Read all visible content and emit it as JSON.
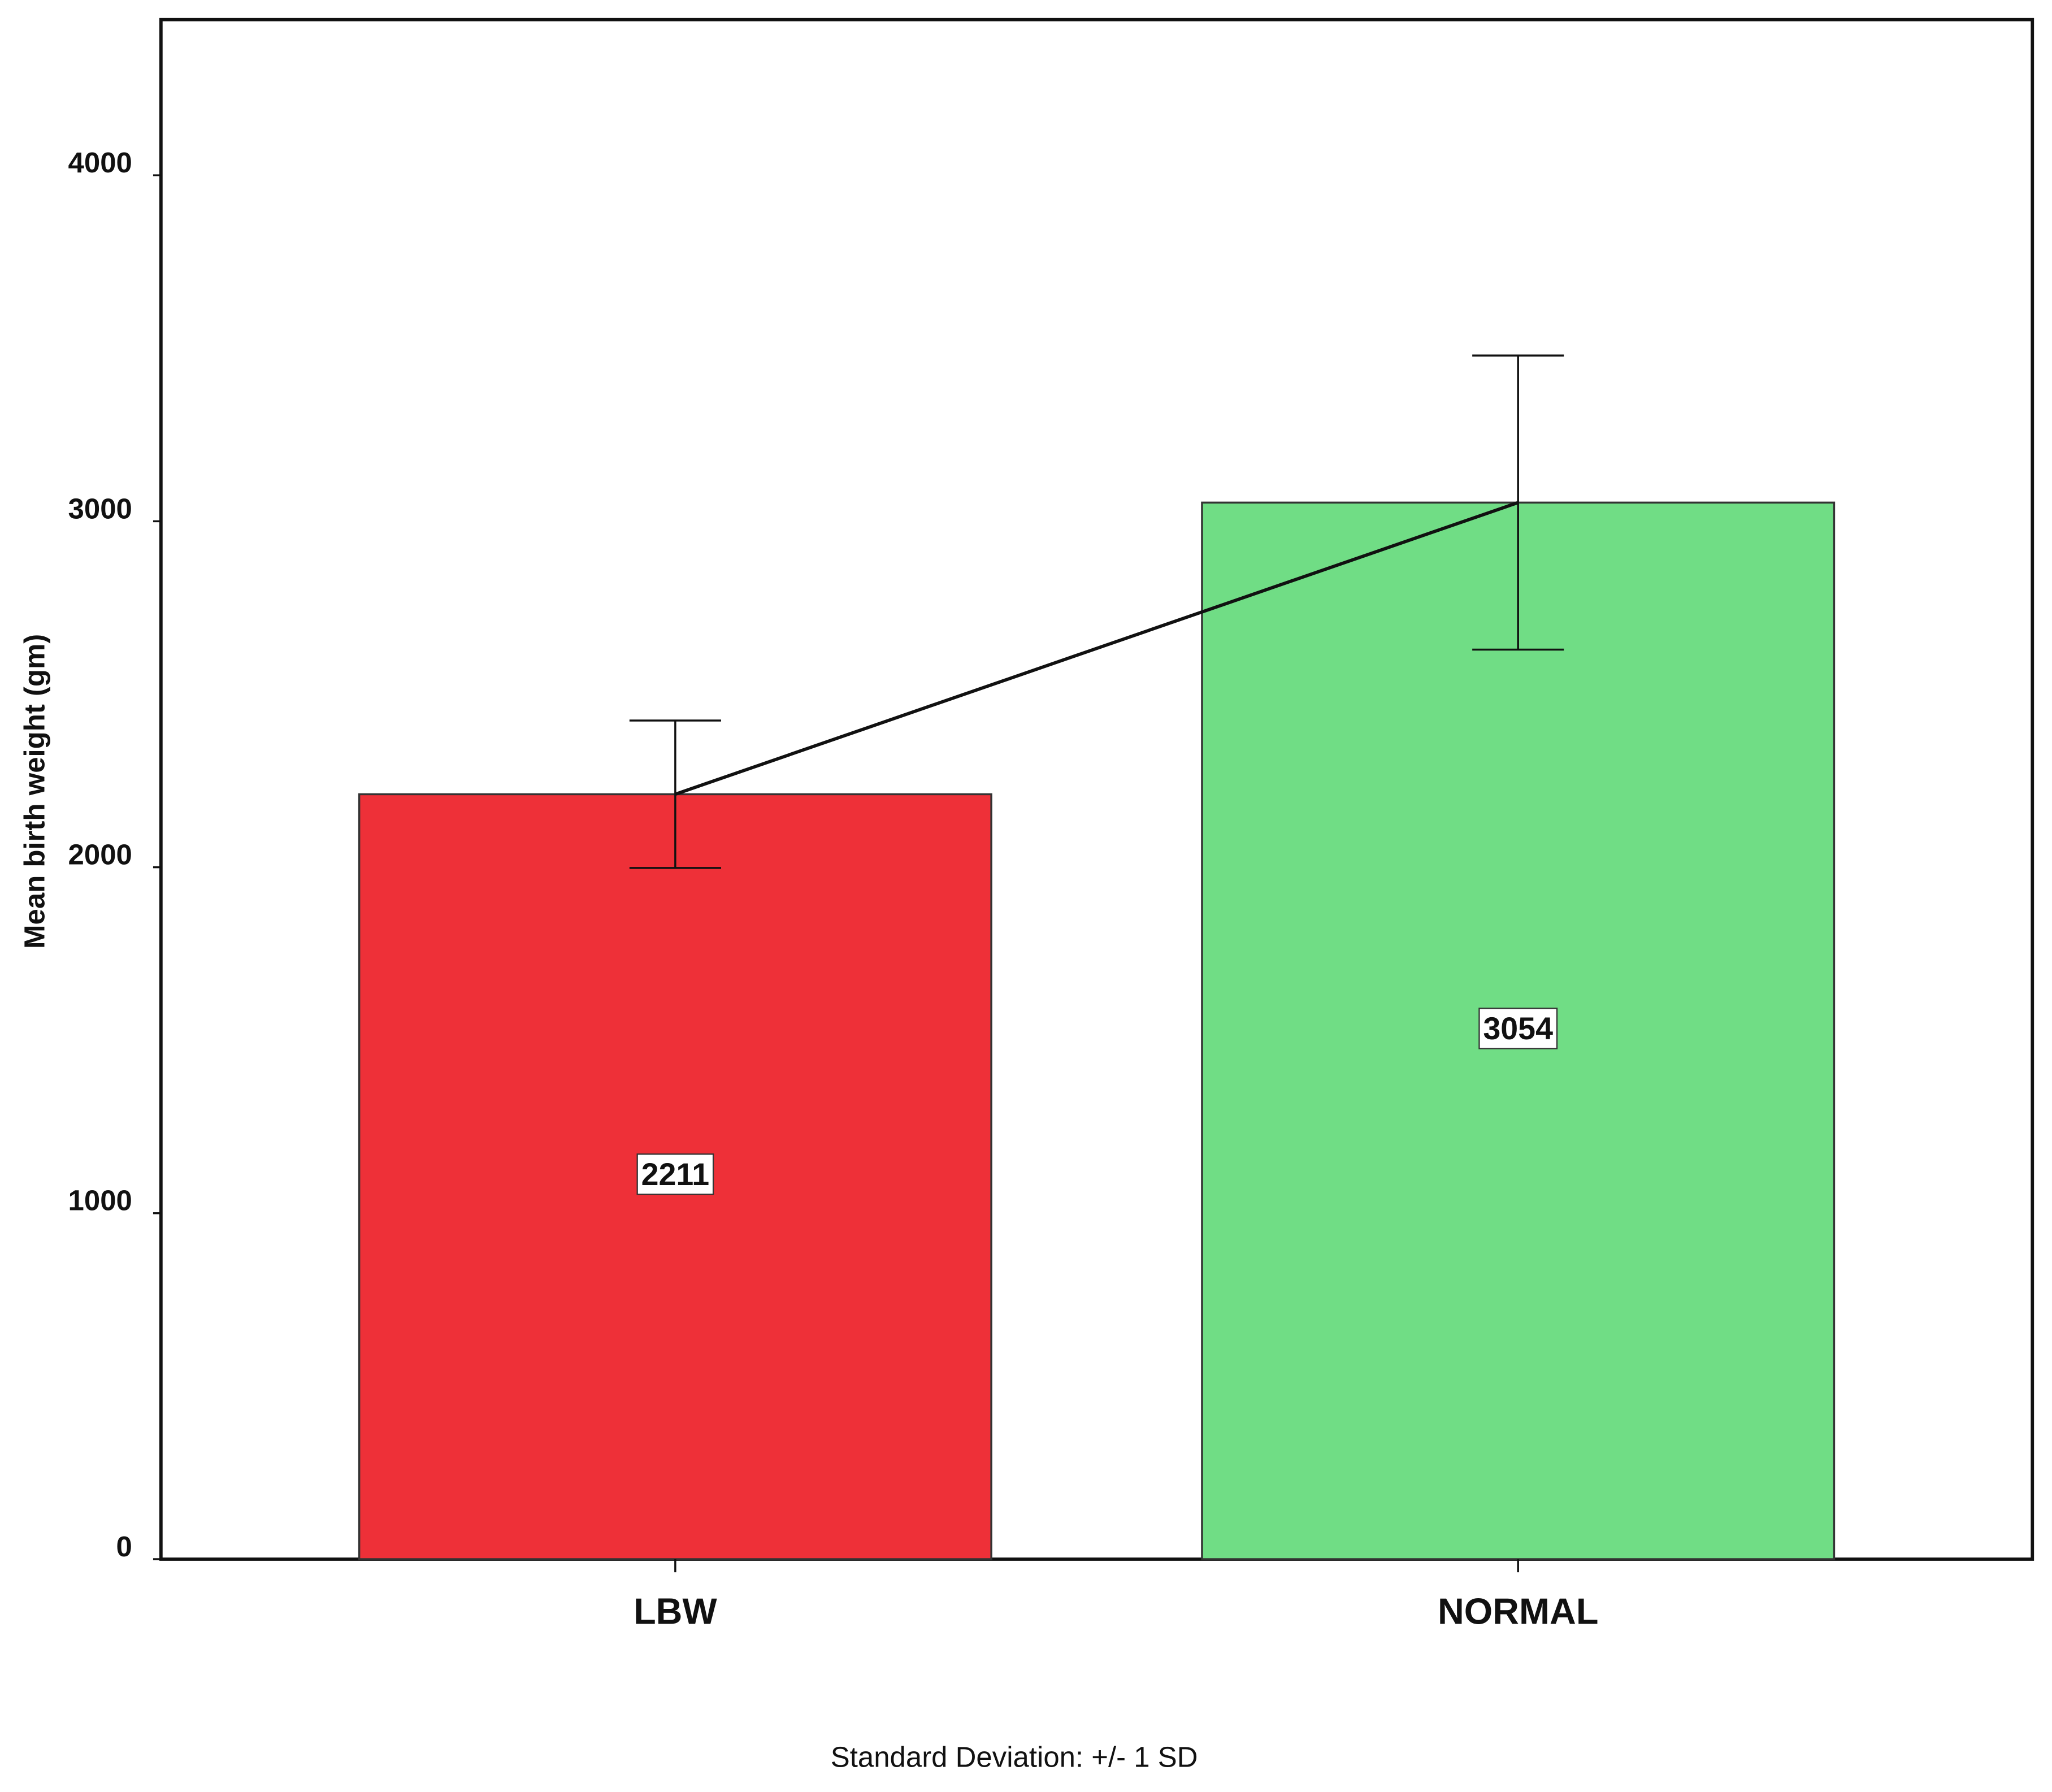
{
  "chart_data": {
    "type": "bar",
    "y_label": "Mean birth weight (gm)",
    "categories": [
      "LBW",
      "NORMAL"
    ],
    "values": [
      2211,
      3054
    ],
    "errors": [
      213,
      425
    ],
    "colors": [
      "#ee3038",
      "#70dd85"
    ],
    "connect_means": true,
    "ylim": [
      0,
      4450
    ],
    "yticks": [
      0,
      1000,
      2000,
      3000,
      4000
    ],
    "footnote": "Standard Deviation: +/- 1 SD"
  }
}
